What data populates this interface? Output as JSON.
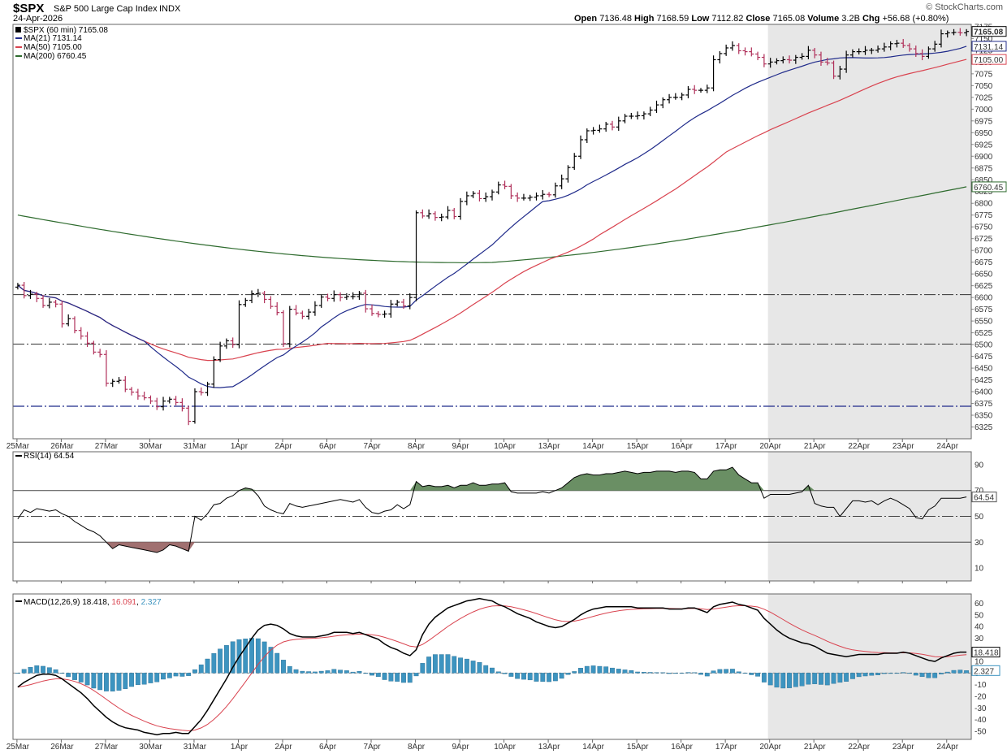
{
  "header": {
    "symbol": "$SPX",
    "description": "S&P 500 Large Cap Index",
    "exchange": "INDX",
    "date": "24-Apr-2026",
    "watermark": "© StockCharts.com",
    "open_label": "Open",
    "open": "7136.48",
    "high_label": "High",
    "high": "7168.59",
    "low_label": "Low",
    "low": "7112.82",
    "close_label": "Close",
    "close": "7165.08",
    "volume_label": "Volume",
    "volume": "3.2B",
    "chg_label": "Chg",
    "chg": "+56.68 (+0.80%)"
  },
  "legend": {
    "price": "$SPX (60 min) 7165.08",
    "ma21": "MA(21) 7131.14",
    "ma50": "MA(50) 7105.00",
    "ma200": "MA(200) 6760.45",
    "rsi": "RSI(14) 64.54",
    "macd_label": "MACD(12,26,9)",
    "macd_val": "18.418",
    "signal_val": "16.091",
    "hist_val": "2.327"
  },
  "colors": {
    "up_bar": "#000000",
    "down_bar": "#b0305a",
    "ma21": "#1f2a8a",
    "ma50": "#d9434f",
    "ma200": "#2e6b2e",
    "rsi_fill": "#6a8f64",
    "rsi_fill_low": "#a07070",
    "macd_hist": "#3d94c0",
    "signal": "#d9434f",
    "shade": "#e7e7e7"
  },
  "chart_data": [
    {
      "type": "line",
      "panel": "price",
      "x_tick_labels": [
        "25Mar",
        "26Mar",
        "27Mar",
        "30Mar",
        "31Mar",
        "1Apr",
        "2Apr",
        "6Apr",
        "7Apr",
        "8Apr",
        "9Apr",
        "10Apr",
        "13Apr",
        "14Apr",
        "15Apr",
        "16Apr",
        "17Apr",
        "20Apr",
        "21Apr",
        "22Apr",
        "23Apr",
        "24Apr"
      ],
      "y_ticks": [
        6325,
        6350,
        6375,
        6400,
        6425,
        6450,
        6475,
        6500,
        6525,
        6550,
        6575,
        6600,
        6625,
        6650,
        6675,
        6700,
        6725,
        6750,
        6775,
        6800,
        6825,
        6850,
        6875,
        6900,
        6925,
        6950,
        6975,
        7000,
        7025,
        7050,
        7075,
        7100,
        7125,
        7150,
        7175
      ],
      "ylim": [
        6300,
        7180
      ],
      "horizontal_levels": [
        6606,
        6501,
        6369
      ],
      "support_line": 6369,
      "last_labels": [
        "7165.08",
        "7131.14",
        "7105.00",
        "6760.45"
      ],
      "bars_per_day": 7,
      "close": [
        6626,
        6604,
        6607,
        6598,
        6583,
        6590,
        6586,
        6544,
        6555,
        6530,
        6518,
        6503,
        6484,
        6479,
        6418,
        6422,
        6424,
        6405,
        6399,
        6391,
        6387,
        6380,
        6368,
        6380,
        6384,
        6377,
        6365,
        6337,
        6400,
        6398,
        6416,
        6468,
        6497,
        6508,
        6500,
        6585,
        6594,
        6608,
        6609,
        6596,
        6581,
        6568,
        6502,
        6575,
        6567,
        6560,
        6569,
        6583,
        6601,
        6598,
        6606,
        6600,
        6602,
        6602,
        6609,
        6576,
        6566,
        6564,
        6565,
        6586,
        6590,
        6582,
        6600,
        6780,
        6773,
        6778,
        6770,
        6771,
        6785,
        6772,
        6804,
        6816,
        6821,
        6810,
        6814,
        6824,
        6839,
        6836,
        6816,
        6811,
        6811,
        6813,
        6816,
        6819,
        6818,
        6837,
        6852,
        6876,
        6900,
        6935,
        6954,
        6955,
        6958,
        6968,
        6962,
        6975,
        6985,
        6985,
        6986,
        6990,
        6998,
        7009,
        7020,
        7025,
        7025,
        7030,
        7042,
        7040,
        7040,
        7045,
        7105,
        7118,
        7130,
        7135,
        7124,
        7122,
        7117,
        7110,
        7096,
        7100,
        7103,
        7105,
        7104,
        7110,
        7112,
        7125,
        7115,
        7100,
        7098,
        7070,
        7085,
        7115,
        7122,
        7122,
        7125,
        7125,
        7128,
        7132,
        7139,
        7140,
        7135,
        7128,
        7118,
        7112,
        7128,
        7138,
        7160,
        7162,
        7163,
        7162,
        7165
      ]
    },
    {
      "type": "line",
      "panel": "rsi",
      "name": "RSI(14)",
      "ylim": [
        0,
        100
      ],
      "y_ticks": [
        10,
        30,
        50,
        70,
        90
      ],
      "levels": [
        70,
        50,
        30
      ],
      "last_label": "64.54",
      "values": [
        48,
        55,
        53,
        56,
        55,
        54,
        55,
        52,
        50,
        46,
        43,
        40,
        38,
        35,
        30,
        25,
        28,
        27,
        26,
        25,
        24,
        23,
        22,
        24,
        28,
        27,
        25,
        23,
        50,
        47,
        52,
        59,
        60,
        64,
        66,
        70,
        72,
        71,
        66,
        58,
        55,
        53,
        52,
        60,
        58,
        57,
        58,
        59,
        60,
        61,
        62,
        63,
        62,
        61,
        63,
        57,
        53,
        52,
        54,
        55,
        59,
        56,
        59,
        77,
        73,
        74,
        73,
        73,
        74,
        72,
        74,
        74,
        76,
        74,
        74,
        75,
        75,
        76,
        69,
        68,
        68,
        68,
        68,
        69,
        68,
        70,
        72,
        76,
        80,
        82,
        83,
        82,
        82,
        83,
        83,
        84,
        85,
        84,
        83,
        84,
        84,
        85,
        85,
        85,
        84,
        85,
        85,
        84,
        79,
        79,
        85,
        86,
        86,
        88,
        82,
        79,
        76,
        76,
        64,
        67,
        67,
        67,
        67,
        68,
        69,
        74,
        60,
        58,
        57,
        57,
        50,
        56,
        62,
        62,
        61,
        62,
        59,
        62,
        64,
        62,
        59,
        56,
        49,
        48,
        55,
        58,
        64,
        64,
        64,
        64,
        65
      ]
    },
    {
      "type": "bar",
      "panel": "macd",
      "name": "MACD(12,26,9)",
      "ylim": [
        -57,
        68
      ],
      "y_ticks": [
        -50,
        -40,
        -30,
        -20,
        -10,
        0,
        10,
        20,
        30,
        40,
        50,
        60
      ],
      "last_labels": [
        "18.418",
        "2.327"
      ],
      "macd": [
        -12,
        -8,
        -5,
        -2,
        -1,
        -1,
        -2,
        -5,
        -9,
        -13,
        -17,
        -22,
        -28,
        -33,
        -38,
        -42,
        -45,
        -47,
        -48,
        -49,
        -51,
        -52,
        -53,
        -52,
        -52,
        -51,
        -52,
        -52,
        -46,
        -40,
        -32,
        -23,
        -14,
        -5,
        5,
        14,
        22,
        30,
        37,
        41,
        42,
        41,
        38,
        34,
        32,
        31,
        31,
        31,
        32,
        33,
        35,
        35,
        35,
        34,
        35,
        33,
        31,
        29,
        25,
        22,
        20,
        17,
        15,
        20,
        33,
        42,
        48,
        52,
        56,
        58,
        60,
        62,
        63,
        64,
        63,
        62,
        59,
        57,
        54,
        51,
        49,
        47,
        44,
        42,
        40,
        39,
        40,
        43,
        46,
        50,
        53,
        55,
        56,
        57,
        57,
        57,
        57,
        57,
        56,
        56,
        56,
        56,
        56,
        55,
        55,
        55,
        56,
        56,
        54,
        52,
        57,
        59,
        60,
        61,
        59,
        58,
        56,
        54,
        47,
        42,
        37,
        33,
        30,
        28,
        26,
        25,
        23,
        20,
        17,
        16,
        15,
        14,
        15,
        16,
        16,
        16,
        16,
        17,
        17,
        17,
        18,
        17,
        15,
        13,
        11,
        10,
        13,
        15,
        17,
        18,
        18
      ]
    }
  ]
}
